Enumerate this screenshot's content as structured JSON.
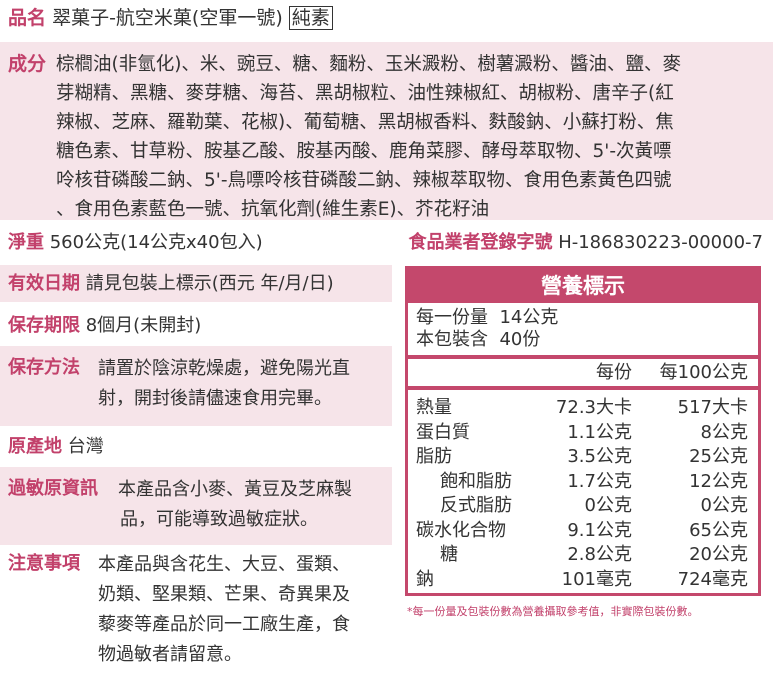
{
  "product": {
    "label": "品名",
    "value": "翠菓子-航空米菓(空軍一號)",
    "badge": "純素"
  },
  "ingredients": {
    "label": "成分",
    "lines": [
      "棕櫚油(非氫化)、米、豌豆、糖、麵粉、玉米澱粉、樹薯澱粉、醬油、鹽、麥",
      "芽糊精、黑糖、麥芽糖、海苔、黑胡椒粒、油性辣椒紅、胡椒粉、唐辛子(紅",
      "辣椒、芝麻、羅勒葉、花椒)、葡萄糖、黑胡椒香料、麩酸鈉、小蘇打粉、焦",
      "糖色素、甘草粉、胺基乙酸、胺基丙酸、鹿角菜膠、酵母萃取物、5'-次黃嘌",
      "呤核苷磷酸二鈉、5'-鳥嘌呤核苷磷酸二鈉、辣椒萃取物、食用色素黃色四號",
      "、食用色素藍色一號、抗氧化劑(維生素E)、芥花籽油"
    ]
  },
  "net_weight": {
    "label": "淨重",
    "value": "560公克(14公克x40包入)"
  },
  "registration": {
    "label": "食品業者登錄字號",
    "value": "H-186830223-00000-7"
  },
  "expiry": {
    "label": "有效日期",
    "value": "請見包裝上標示(西元 年/月/日)"
  },
  "shelf_life": {
    "label": "保存期限",
    "value": "8個月(未開封)"
  },
  "storage": {
    "label": "保存方法",
    "lines": [
      "請置於陰涼乾燥處，避免陽光直",
      "射，開封後請儘速食用完畢。"
    ]
  },
  "origin": {
    "label": "原產地",
    "value": "台灣"
  },
  "allergen": {
    "label": "過敏原資訊",
    "lines": [
      "本產品含小麥、黃豆及芝麻製",
      "品，可能導致過敏症狀。"
    ]
  },
  "notice": {
    "label": "注意事項",
    "lines": [
      "本產品與含花生、大豆、蛋類、",
      "奶類、堅果類、芒果、奇異果及",
      "藜麥等產品於同一工廠生產，食",
      "物過敏者請留意。"
    ]
  },
  "nutrition": {
    "title": "營養標示",
    "serving_label": "每一份量",
    "serving_value": "14公克",
    "count_label": "本包裝含",
    "count_value": "40份",
    "col_per_serving": "每份",
    "col_per_100g": "每100公克",
    "rows": [
      {
        "name": "熱量",
        "per": "72.3大卡",
        "per100": "517大卡"
      },
      {
        "name": "蛋白質",
        "per": "1.1公克",
        "per100": "8公克"
      },
      {
        "name": "脂肪",
        "per": "3.5公克",
        "per100": "25公克"
      },
      {
        "name": "飽和脂肪",
        "per": "1.7公克",
        "per100": "12公克",
        "indent": true
      },
      {
        "name": "反式脂肪",
        "per": "0公克",
        "per100": "0公克",
        "indent": true
      },
      {
        "name": "碳水化合物",
        "per": "9.1公克",
        "per100": "65公克"
      },
      {
        "name": "糖",
        "per": "2.8公克",
        "per100": "20公克",
        "indent": true
      },
      {
        "name": "鈉",
        "per": "101毫克",
        "per100": "724毫克"
      }
    ],
    "footnote": "*每一份量及包裝份數為營養攝取參考值，非實際包裝份數。"
  },
  "colors": {
    "accent": "#c2416b",
    "band": "#f6e4e9",
    "nutrition_header": "#c4486c"
  }
}
